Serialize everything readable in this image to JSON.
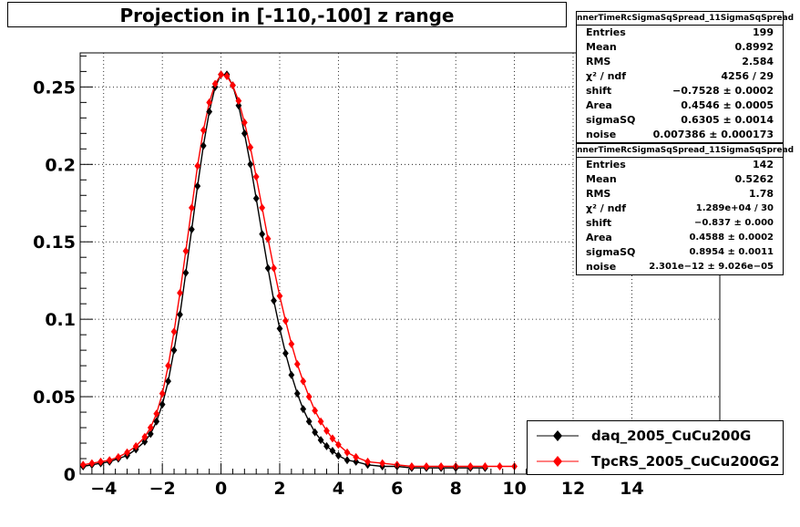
{
  "title": "Projection in [-110,-100] z range",
  "stats_boxes": [
    {
      "header": "nnerTimeRcSigmaSqSpread_11SigmaSqSpread",
      "rows": [
        {
          "key": "Entries",
          "value": "199"
        },
        {
          "key": "Mean",
          "value": "0.8992"
        },
        {
          "key": "RMS",
          "value": "2.584"
        },
        {
          "key": "χ² / ndf",
          "value": "4256 / 29"
        },
        {
          "key": "shift",
          "value": "−0.7528 ± 0.0002"
        },
        {
          "key": "Area",
          "value": "0.4546 ± 0.0005"
        },
        {
          "key": "sigmaSQ",
          "value": "0.6305 ± 0.0014"
        },
        {
          "key": "noise",
          "value": "0.007386 ± 0.000173"
        }
      ]
    },
    {
      "header": "nnerTimeRcSigmaSqSpread_11SigmaSqSpread",
      "rows": [
        {
          "key": "Entries",
          "value": "142"
        },
        {
          "key": "Mean",
          "value": "0.5262"
        },
        {
          "key": "RMS",
          "value": "1.78"
        },
        {
          "key": "χ² / ndf",
          "value": "1.289e+04 / 30"
        },
        {
          "key": "shift",
          "value": "−0.837 ± 0.000"
        },
        {
          "key": "Area",
          "value": "0.4588 ± 0.0002"
        },
        {
          "key": "sigmaSQ",
          "value": "0.8954 ± 0.0011"
        },
        {
          "key": "noise",
          "value": "2.301e−12 ± 9.026e−05"
        }
      ]
    }
  ],
  "legend": [
    {
      "label": "daq_2005_CuCu200G",
      "color": "#000000"
    },
    {
      "label": "TpcRS_2005_CuCu200G2",
      "color": "#ff0000"
    }
  ],
  "chart_data": {
    "type": "scatter",
    "title": "Projection in [-110,-100] z range",
    "xlabel": "",
    "ylabel": "",
    "xlim": [
      -4.8,
      17
    ],
    "ylim": [
      0,
      0.272
    ],
    "grid": true,
    "x_ticks": [
      -4,
      -2,
      0,
      2,
      4,
      6,
      8,
      10,
      12,
      14
    ],
    "x_tick_labels": [
      "−4",
      "−2",
      "0",
      "2",
      "4",
      "6",
      "8",
      "10",
      "12",
      "14"
    ],
    "y_ticks": [
      0,
      0.05,
      0.1,
      0.15,
      0.2,
      0.25
    ],
    "y_tick_labels": [
      "0",
      "0.05",
      "0.1",
      "0.15",
      "0.2",
      "0.25"
    ],
    "legend_position": "bottom-right",
    "series": [
      {
        "name": "daq_2005_CuCu200G",
        "color": "#000000",
        "x": [
          -4.7,
          -4.4,
          -4.1,
          -3.8,
          -3.5,
          -3.2,
          -2.9,
          -2.6,
          -2.4,
          -2.2,
          -2.0,
          -1.8,
          -1.6,
          -1.4,
          -1.2,
          -1.0,
          -0.8,
          -0.6,
          -0.4,
          -0.2,
          0.0,
          0.2,
          0.4,
          0.6,
          0.8,
          1.0,
          1.2,
          1.4,
          1.6,
          1.8,
          2.0,
          2.2,
          2.4,
          2.6,
          2.8,
          3.0,
          3.2,
          3.4,
          3.6,
          3.8,
          4.0,
          4.3,
          4.6,
          5.0,
          5.5,
          6.0,
          6.5,
          7.0,
          7.5,
          8.0,
          8.5,
          9.0
        ],
        "y": [
          0.005,
          0.006,
          0.007,
          0.008,
          0.01,
          0.012,
          0.016,
          0.021,
          0.026,
          0.034,
          0.045,
          0.06,
          0.08,
          0.103,
          0.13,
          0.158,
          0.186,
          0.212,
          0.234,
          0.25,
          0.258,
          0.258,
          0.251,
          0.238,
          0.22,
          0.2,
          0.178,
          0.155,
          0.133,
          0.112,
          0.094,
          0.078,
          0.064,
          0.052,
          0.042,
          0.034,
          0.027,
          0.022,
          0.018,
          0.015,
          0.012,
          0.009,
          0.008,
          0.006,
          0.005,
          0.005,
          0.004,
          0.004,
          0.004,
          0.004,
          0.004,
          0.004
        ]
      },
      {
        "name": "TpcRS_2005_CuCu200G2",
        "color": "#ff0000",
        "x": [
          -4.7,
          -4.4,
          -4.1,
          -3.8,
          -3.5,
          -3.2,
          -2.9,
          -2.6,
          -2.4,
          -2.2,
          -2.0,
          -1.8,
          -1.6,
          -1.4,
          -1.2,
          -1.0,
          -0.8,
          -0.6,
          -0.4,
          -0.2,
          0.0,
          0.2,
          0.4,
          0.6,
          0.8,
          1.0,
          1.2,
          1.4,
          1.6,
          1.8,
          2.0,
          2.2,
          2.4,
          2.6,
          2.8,
          3.0,
          3.2,
          3.4,
          3.6,
          3.8,
          4.0,
          4.3,
          4.6,
          5.0,
          5.5,
          6.0,
          6.5,
          7.0,
          7.5,
          8.0,
          8.5,
          9.0,
          9.5,
          10.0
        ],
        "y": [
          0.006,
          0.007,
          0.008,
          0.009,
          0.011,
          0.014,
          0.018,
          0.024,
          0.03,
          0.039,
          0.052,
          0.07,
          0.092,
          0.117,
          0.144,
          0.172,
          0.199,
          0.222,
          0.24,
          0.252,
          0.258,
          0.257,
          0.251,
          0.241,
          0.227,
          0.211,
          0.192,
          0.172,
          0.152,
          0.133,
          0.115,
          0.099,
          0.084,
          0.071,
          0.06,
          0.05,
          0.041,
          0.034,
          0.028,
          0.023,
          0.019,
          0.014,
          0.011,
          0.008,
          0.007,
          0.006,
          0.005,
          0.005,
          0.005,
          0.005,
          0.005,
          0.005,
          0.005,
          0.005
        ]
      }
    ]
  }
}
